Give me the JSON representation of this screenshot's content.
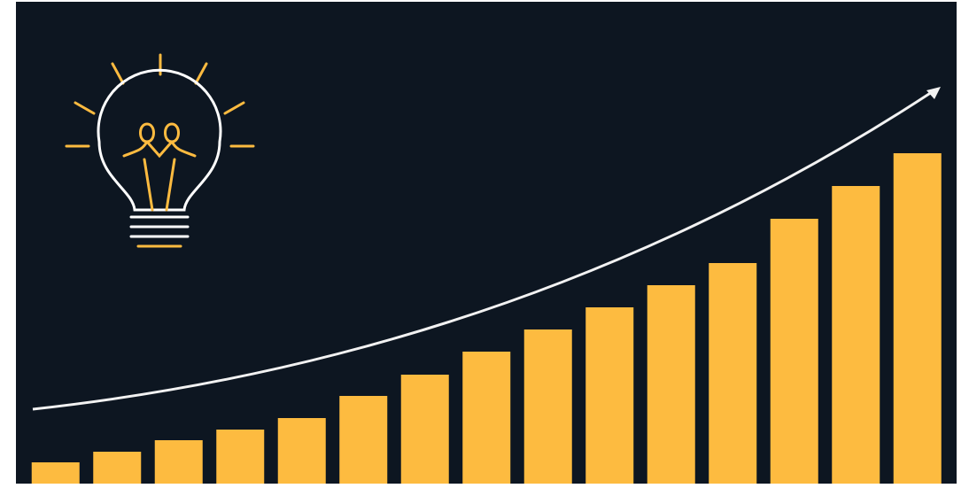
{
  "chart_data": {
    "type": "bar",
    "categories": [
      null,
      null,
      null,
      null,
      null,
      null,
      null,
      null,
      null,
      null,
      null,
      null,
      null,
      null,
      null
    ],
    "values": [
      24,
      36,
      49,
      61,
      74,
      99,
      123,
      149,
      174,
      199,
      224,
      249,
      299,
      336,
      373
    ],
    "color": "#fdbb40",
    "ylim": [
      0,
      544
    ]
  }
}
